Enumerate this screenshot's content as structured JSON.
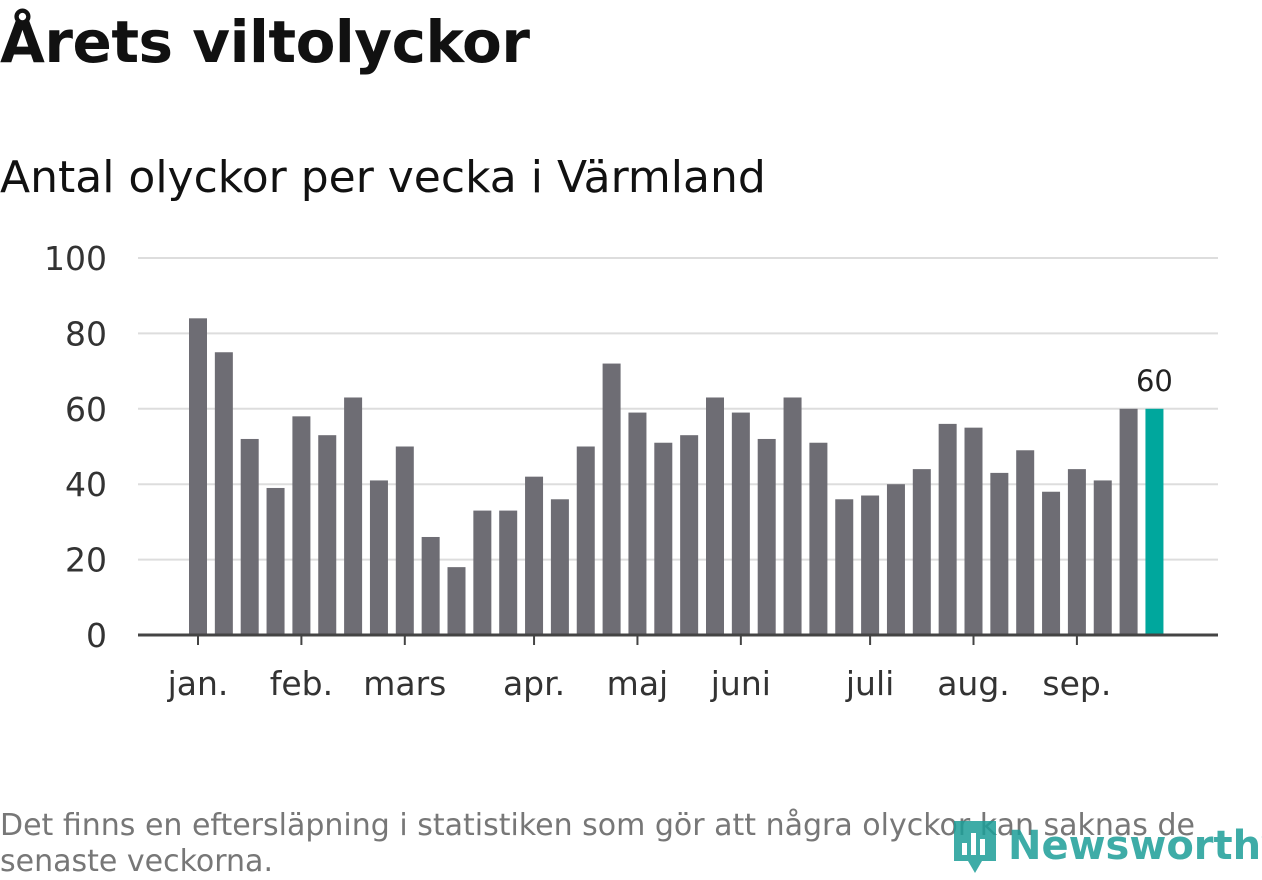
{
  "title": "Årets viltolyckor",
  "subtitle": "Antal olyckor per vecka i Värmland",
  "footnote": "Det finns en eftersläpning i statistiken som gör att några olyckor kan saknas de senaste veckorna.",
  "brand": {
    "name": "Newsworthy",
    "icon": "newsworthy-logo-icon"
  },
  "colors": {
    "bar": "#6e6d74",
    "highlight": "#00a79d",
    "grid": "#dddddd",
    "axis": "#444444"
  },
  "chart_data": {
    "type": "bar",
    "title": "Årets viltolyckor",
    "subtitle": "Antal olyckor per vecka i Värmland",
    "xlabel": "",
    "ylabel": "",
    "ylim": [
      0,
      100
    ],
    "yticks": [
      0,
      20,
      40,
      60,
      80,
      100
    ],
    "grid": true,
    "values": [
      84,
      75,
      52,
      39,
      58,
      53,
      63,
      41,
      50,
      26,
      18,
      33,
      33,
      42,
      36,
      50,
      72,
      59,
      51,
      53,
      63,
      59,
      52,
      63,
      51,
      36,
      37,
      40,
      44,
      56,
      55,
      43,
      49,
      38,
      44,
      41,
      60,
      60
    ],
    "highlight_index": 37,
    "highlight_label": "60",
    "month_labels": [
      {
        "label": "jan.",
        "bar_index": 0
      },
      {
        "label": "feb.",
        "bar_index": 4
      },
      {
        "label": "mars",
        "bar_index": 8
      },
      {
        "label": "apr.",
        "bar_index": 13
      },
      {
        "label": "maj",
        "bar_index": 17
      },
      {
        "label": "juni",
        "bar_index": 21
      },
      {
        "label": "juli",
        "bar_index": 26
      },
      {
        "label": "aug.",
        "bar_index": 30
      },
      {
        "label": "sep.",
        "bar_index": 34
      }
    ]
  }
}
